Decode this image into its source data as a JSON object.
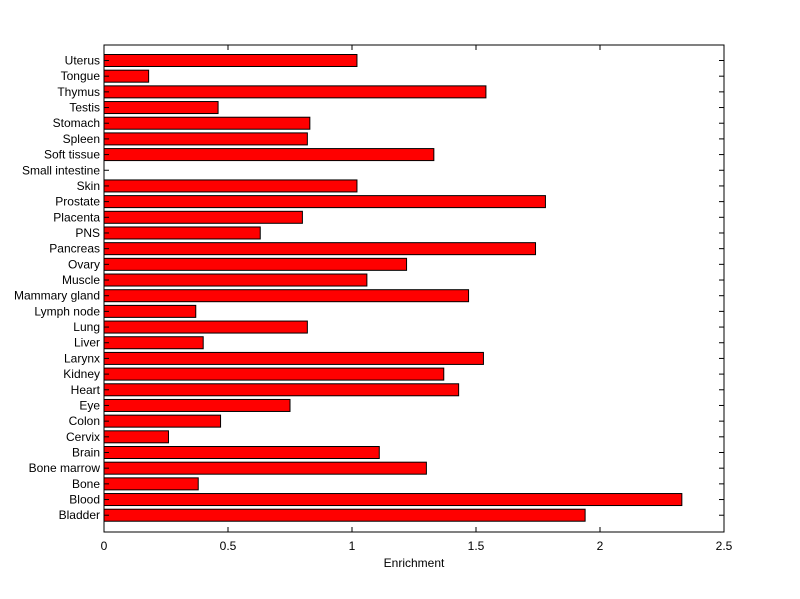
{
  "chart_data": {
    "type": "bar",
    "orientation": "horizontal",
    "title": "",
    "xlabel": "Enrichment",
    "ylabel": "",
    "xlim": [
      0,
      2.5
    ],
    "xticks": [
      0,
      0.5,
      1,
      1.5,
      2,
      2.5
    ],
    "xtick_labels": [
      "0",
      "0.5",
      "1",
      "1.5",
      "2",
      "2.5"
    ],
    "grid": false,
    "legend": "none",
    "bar_color": "#ff0000",
    "bar_edge_color": "#000000",
    "categories": [
      "Uterus",
      "Tongue",
      "Thymus",
      "Testis",
      "Stomach",
      "Spleen",
      "Soft tissue",
      "Small intestine",
      "Skin",
      "Prostate",
      "Placenta",
      "PNS",
      "Pancreas",
      "Ovary",
      "Muscle",
      "Mammary gland",
      "Lymph node",
      "Lung",
      "Liver",
      "Larynx",
      "Kidney",
      "Heart",
      "Eye",
      "Colon",
      "Cervix",
      "Brain",
      "Bone marrow",
      "Bone",
      "Blood",
      "Bladder"
    ],
    "values": [
      1.02,
      0.18,
      1.54,
      0.46,
      0.83,
      0.82,
      1.33,
      0.0,
      1.02,
      1.78,
      0.8,
      0.63,
      1.74,
      1.22,
      1.06,
      1.47,
      0.37,
      0.82,
      0.4,
      1.53,
      1.37,
      1.43,
      0.75,
      0.47,
      0.26,
      1.11,
      1.3,
      0.38,
      2.33,
      1.94
    ]
  }
}
